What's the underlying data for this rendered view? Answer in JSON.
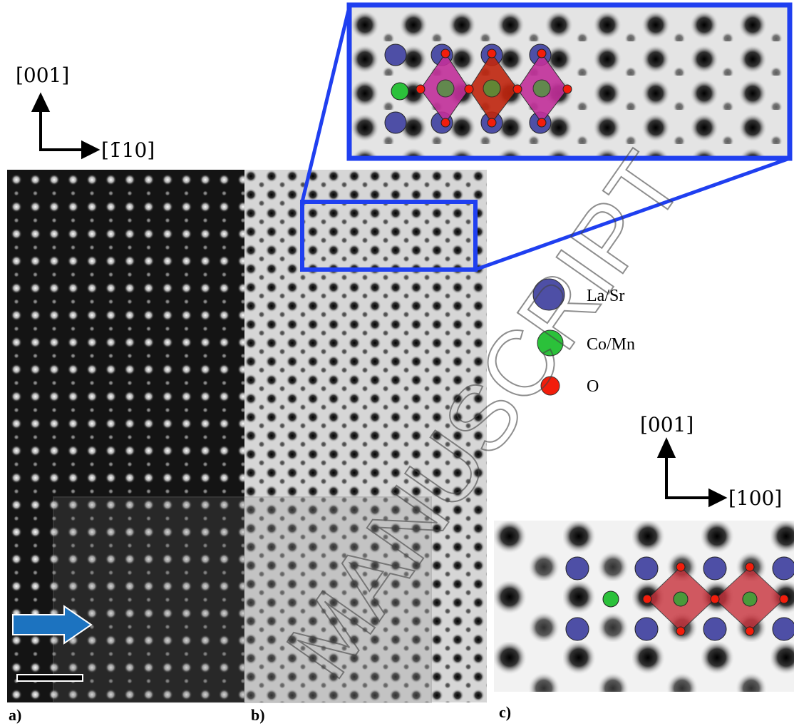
{
  "axes_top": {
    "vertical": "[001]",
    "horizontal": "[1̄10]"
  },
  "panel_a": {
    "label": "a)"
  },
  "panel_b": {
    "label": "b)"
  },
  "panel_c": {
    "label": "c)",
    "axes": {
      "vertical": "[001]",
      "horizontal": "[100]"
    }
  },
  "legend": [
    {
      "label": "La/Sr"
    },
    {
      "label": "Co/Mn"
    },
    {
      "label": "O"
    }
  ],
  "watermark": "MANUSCRIPT"
}
